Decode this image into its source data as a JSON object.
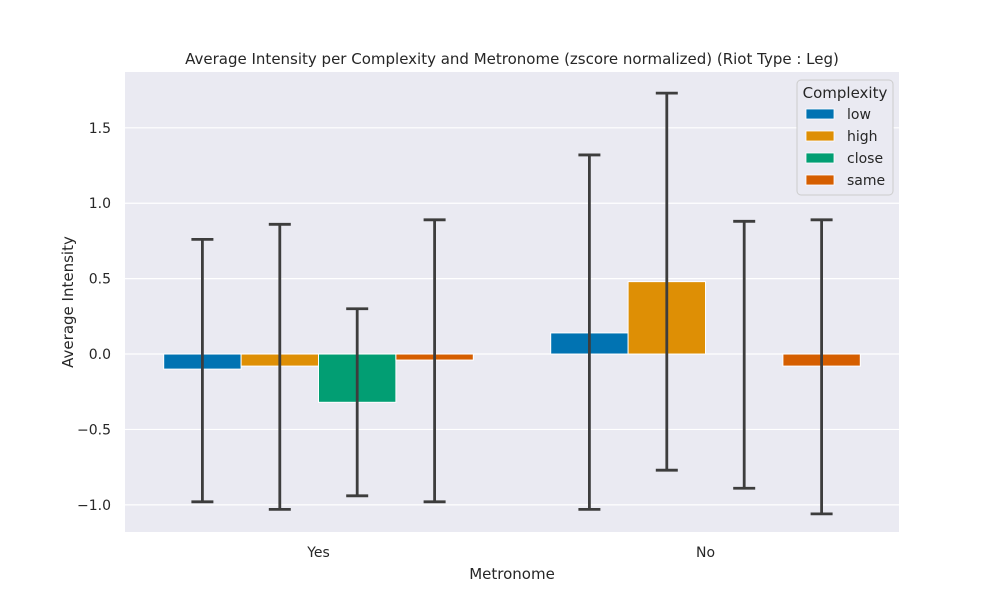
{
  "chart_data": {
    "type": "bar",
    "title": "Average Intensity per Complexity and Metronome (zscore normalized) (Riot Type : Leg)",
    "xlabel": "Metronome",
    "ylabel": "Average Intensity",
    "categories": [
      "Yes",
      "No"
    ],
    "ylim": [
      -1.18,
      1.87
    ],
    "yticks": [
      -1.0,
      -0.5,
      0.0,
      0.5,
      1.0,
      1.5
    ],
    "ytick_labels": [
      "−1.0",
      "−0.5",
      "0.0",
      "0.5",
      "1.0",
      "1.5"
    ],
    "grid": true,
    "legend": {
      "title": "Complexity",
      "placement": "top-right"
    },
    "series": [
      {
        "name": "low",
        "color": "#0173b2",
        "values": [
          -0.1,
          0.14
        ],
        "err_low": [
          -0.98,
          -1.03
        ],
        "err_high": [
          0.76,
          1.32
        ]
      },
      {
        "name": "high",
        "color": "#de8f05",
        "values": [
          -0.08,
          0.48
        ],
        "err_low": [
          -1.03,
          -0.77
        ],
        "err_high": [
          0.86,
          1.73
        ]
      },
      {
        "name": "close",
        "color": "#029e73",
        "values": [
          -0.32,
          null
        ],
        "err_low": [
          -0.94,
          -0.89
        ],
        "err_high": [
          0.3,
          0.88
        ]
      },
      {
        "name": "same",
        "color": "#d55e00",
        "values": [
          -0.04,
          -0.08
        ],
        "err_low": [
          -0.98,
          -1.06
        ],
        "err_high": [
          0.89,
          0.89
        ]
      }
    ]
  }
}
